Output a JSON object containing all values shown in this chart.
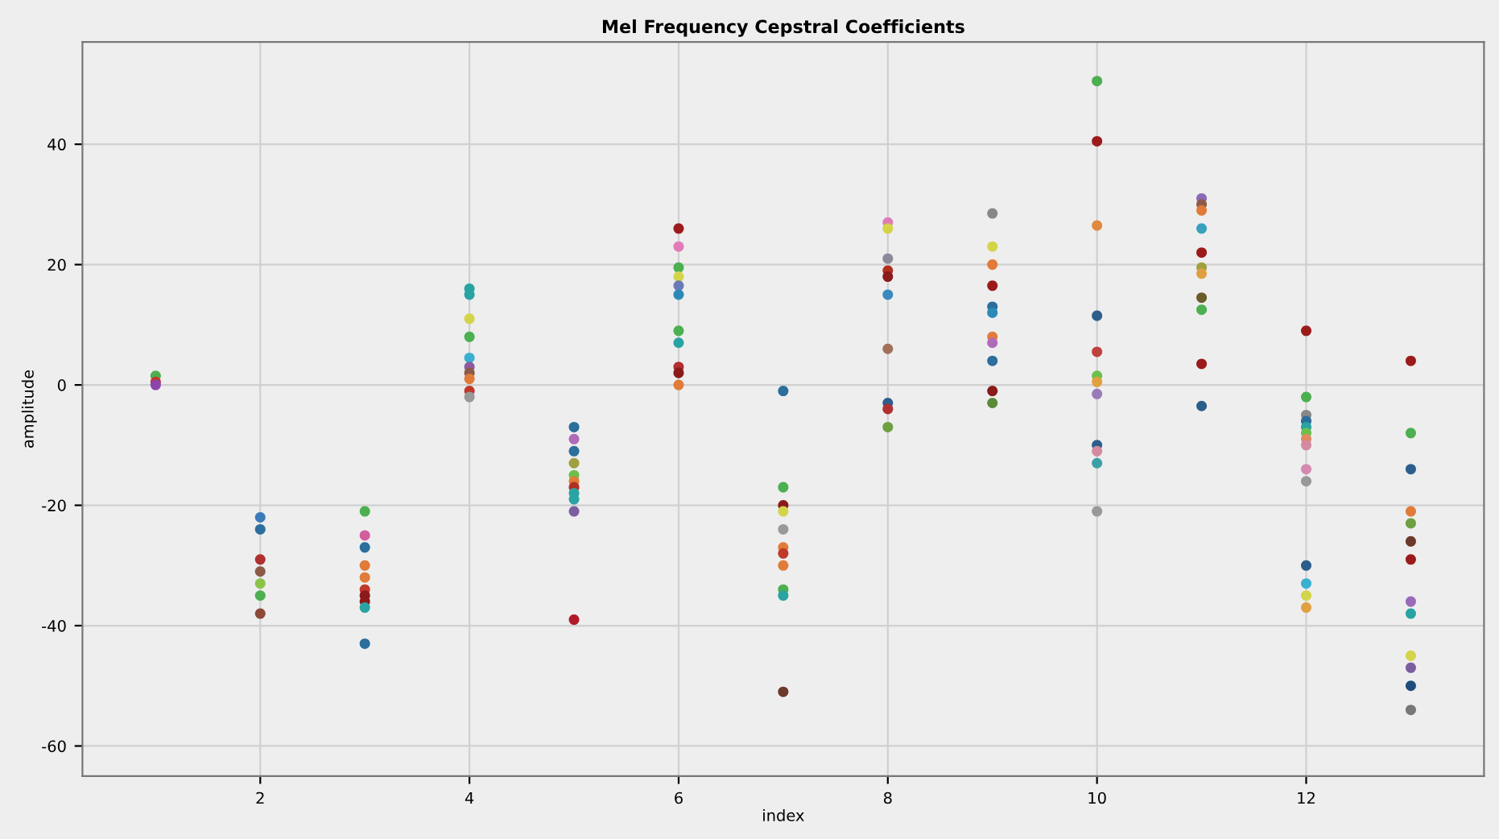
{
  "chart_data": {
    "type": "scatter",
    "title": "Mel Frequency Cepstral Coefficients",
    "xlabel": "index",
    "ylabel": "amplitude",
    "xlim": [
      0.3,
      13.7
    ],
    "xticks": [
      2,
      4,
      6,
      8,
      10,
      12
    ],
    "ylim": [
      -65,
      57
    ],
    "yticks": [
      -60,
      -40,
      -20,
      0,
      20,
      40
    ],
    "grid": true,
    "marker": "circle",
    "series": [
      {
        "x": [
          1,
          1,
          1,
          2,
          2,
          2,
          2,
          2,
          2,
          2,
          3,
          3,
          3,
          3,
          3,
          3,
          3,
          3,
          3,
          3,
          4,
          4,
          4,
          4,
          4,
          4,
          4,
          4,
          4,
          4,
          5,
          5,
          5,
          5,
          5,
          5,
          5,
          5,
          5,
          5,
          5,
          6,
          6,
          6,
          6,
          6,
          6,
          6,
          6,
          6,
          6,
          6,
          7,
          7,
          7,
          7,
          7,
          7,
          7,
          7,
          7,
          7,
          7,
          8,
          8,
          8,
          8,
          8,
          8,
          8,
          8,
          8,
          8,
          9,
          9,
          9,
          9,
          9,
          9,
          9,
          9,
          9,
          9,
          9,
          10,
          10,
          10,
          10,
          10,
          10,
          10,
          10,
          10,
          10,
          10,
          10,
          11,
          11,
          11,
          11,
          11,
          11,
          11,
          11,
          11,
          11,
          11,
          12,
          12,
          12,
          12,
          12,
          12,
          12,
          12,
          12,
          12,
          12,
          12,
          12,
          12,
          13,
          13,
          13,
          13,
          13,
          13,
          13,
          13,
          13,
          13,
          13,
          13,
          13
        ],
        "values": [
          1.5,
          0.5,
          0,
          -22,
          -24,
          -29,
          -31,
          -33,
          -35,
          -38,
          -21,
          -25,
          -27,
          -30,
          -32,
          -34,
          -35,
          -36,
          -37,
          -43,
          16,
          15,
          11,
          8,
          4.5,
          3,
          2,
          1,
          -1,
          -2,
          -7,
          -9,
          -11,
          -13,
          -15,
          -16,
          -17,
          -18,
          -19,
          -21,
          -39,
          26,
          23,
          19.5,
          18,
          16.5,
          15,
          9,
          7,
          3,
          2,
          0,
          -1,
          -17,
          -20,
          -21,
          -24,
          -27,
          -28,
          -30,
          -34,
          -35,
          -51,
          27,
          26,
          21,
          19,
          18,
          15,
          6,
          -3,
          -4,
          -7,
          28.5,
          23,
          20,
          16.5,
          13,
          12,
          8,
          7,
          4,
          -1,
          -3,
          50.5,
          40.5,
          26.5,
          11.5,
          5.5,
          1.5,
          0.5,
          -1.5,
          -10,
          -11,
          -13,
          -21,
          31,
          30,
          29,
          26,
          22,
          19.5,
          18.5,
          14.5,
          12.5,
          3.5,
          -3.5,
          9,
          -2,
          -5,
          -6,
          -7,
          -8,
          -9,
          -10,
          -14,
          -16,
          -30,
          -33,
          -35,
          -37,
          4,
          -8,
          -14,
          -21,
          -23,
          -26,
          -29,
          -36,
          -38,
          -45,
          -47,
          -50,
          -54
        ],
        "colors": [
          "#4caf50",
          "#c0392b",
          "#8e44ad",
          "#3a7ab8",
          "#2c6e9c",
          "#b03030",
          "#8d5a4a",
          "#8bc34a",
          "#4caf50",
          "#8d4a3a",
          "#4caf50",
          "#d45d9e",
          "#2c6e9c",
          "#e07b39",
          "#e07b39",
          "#c0392b",
          "#8b1a1a",
          "#8b1a1a",
          "#2aa3a3",
          "#2c6e9c",
          "#2aa3a3",
          "#2aa3a3",
          "#d4d44a",
          "#4caf50",
          "#3ab0d0",
          "#8e5ba0",
          "#8d5a4a",
          "#e07b39",
          "#c0392b",
          "#999999",
          "#2c6e9c",
          "#b06bb8",
          "#2c6e9c",
          "#a0a040",
          "#6cc04a",
          "#e07b39",
          "#b03020",
          "#2aa3a3",
          "#2aa3a3",
          "#7b5ea0",
          "#b01a2a",
          "#9b1b1b",
          "#e07bb8",
          "#4caf50",
          "#d4d44a",
          "#6a7ab8",
          "#2c8ab8",
          "#4caf50",
          "#2aa3a3",
          "#b03030",
          "#8b1a1a",
          "#e07b39",
          "#2c6e9c",
          "#4caf50",
          "#8b1a1a",
          "#d4d44a",
          "#999999",
          "#e07b39",
          "#c0392b",
          "#e07b39",
          "#4caf50",
          "#2aa3a3",
          "#6b3a2a",
          "#e07bb8",
          "#d4d44a",
          "#8a8a9a",
          "#b03020",
          "#8b1a1a",
          "#3a8ac0",
          "#a0705a",
          "#2c5e8c",
          "#b03030",
          "#6ca040",
          "#888888",
          "#d4d44a",
          "#e07b39",
          "#9b1b1b",
          "#2c6e9c",
          "#2c8ab8",
          "#e07b39",
          "#b06bb8",
          "#2c6e9c",
          "#8b1a1a",
          "#5a8a3a",
          "#4caf50",
          "#9b1b1b",
          "#e08a40",
          "#2c5e8c",
          "#c04040",
          "#6cc04a",
          "#e0a040",
          "#9a7ab8",
          "#2c5e8c",
          "#d48aa0",
          "#3aa0a8",
          "#999999",
          "#8a6ab8",
          "#8d5a4a",
          "#e07b39",
          "#3aa0c0",
          "#9b1b1b",
          "#a0a040",
          "#e0a040",
          "#6b5a2a",
          "#4caf50",
          "#9b1b1b",
          "#2c5e8c",
          "#9b1b1b",
          "#4caf50",
          "#888888",
          "#2c6e9c",
          "#2aa3a3",
          "#6cc04a",
          "#e08a60",
          "#d48aa0",
          "#d48ab0",
          "#999999",
          "#2c5e8c",
          "#3ab0d0",
          "#d4d44a",
          "#e0a040",
          "#9b1b1b",
          "#4caf50",
          "#2c5e8c",
          "#e07b39",
          "#6ca040",
          "#6b3a2a",
          "#9b1b1b",
          "#9a6ab8",
          "#2aa3a3",
          "#d4d44a",
          "#7a5ea0",
          "#1c4e7c",
          "#777777"
        ]
      }
    ]
  }
}
